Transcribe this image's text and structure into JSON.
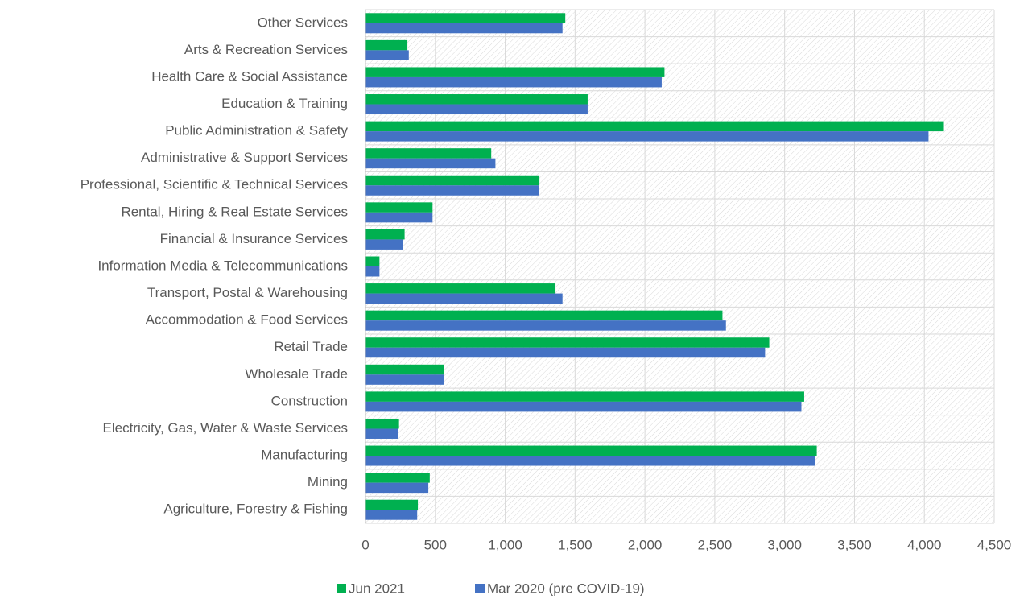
{
  "chart_data": {
    "type": "hbar",
    "categories": [
      "Other Services",
      "Arts & Recreation Services",
      "Health Care & Social Assistance",
      "Education & Training",
      "Public Administration & Safety",
      "Administrative & Support Services",
      "Professional, Scientific & Technical Services",
      "Rental, Hiring & Real Estate Services",
      "Financial & Insurance Services",
      "Information Media & Telecommunications",
      "Transport, Postal & Warehousing",
      "Accommodation & Food Services",
      "Retail Trade",
      "Wholesale Trade",
      "Construction",
      "Electricity, Gas, Water & Waste Services",
      "Manufacturing",
      "Mining",
      "Agriculture, Forestry & Fishing"
    ],
    "series": [
      {
        "name": "Jun 2021",
        "color": "#00b050",
        "values": [
          1430,
          300,
          2140,
          1590,
          4140,
          900,
          1245,
          480,
          280,
          100,
          1360,
          2555,
          2890,
          560,
          3140,
          240,
          3230,
          460,
          375
        ]
      },
      {
        "name": "Mar 2020 (pre COVID-19)",
        "color": "#4472c4",
        "values": [
          1410,
          310,
          2120,
          1590,
          4030,
          930,
          1240,
          480,
          270,
          100,
          1410,
          2580,
          2860,
          560,
          3120,
          235,
          3220,
          450,
          370
        ]
      }
    ],
    "xlim": [
      0,
      4500
    ],
    "xticks": [
      0,
      500,
      {
        "value": 1000,
        "label": "1,000"
      },
      {
        "value": 1500,
        "label": "1,500"
      },
      {
        "value": 2000,
        "label": "2,000"
      },
      {
        "value": 2500,
        "label": "2,500"
      },
      {
        "value": 3000,
        "label": "3,000"
      },
      {
        "value": 3500,
        "label": "3,500"
      },
      {
        "value": 4000,
        "label": "4,000"
      },
      {
        "value": 4500,
        "label": "4,500"
      }
    ],
    "grid": true,
    "legend": "bottom"
  }
}
